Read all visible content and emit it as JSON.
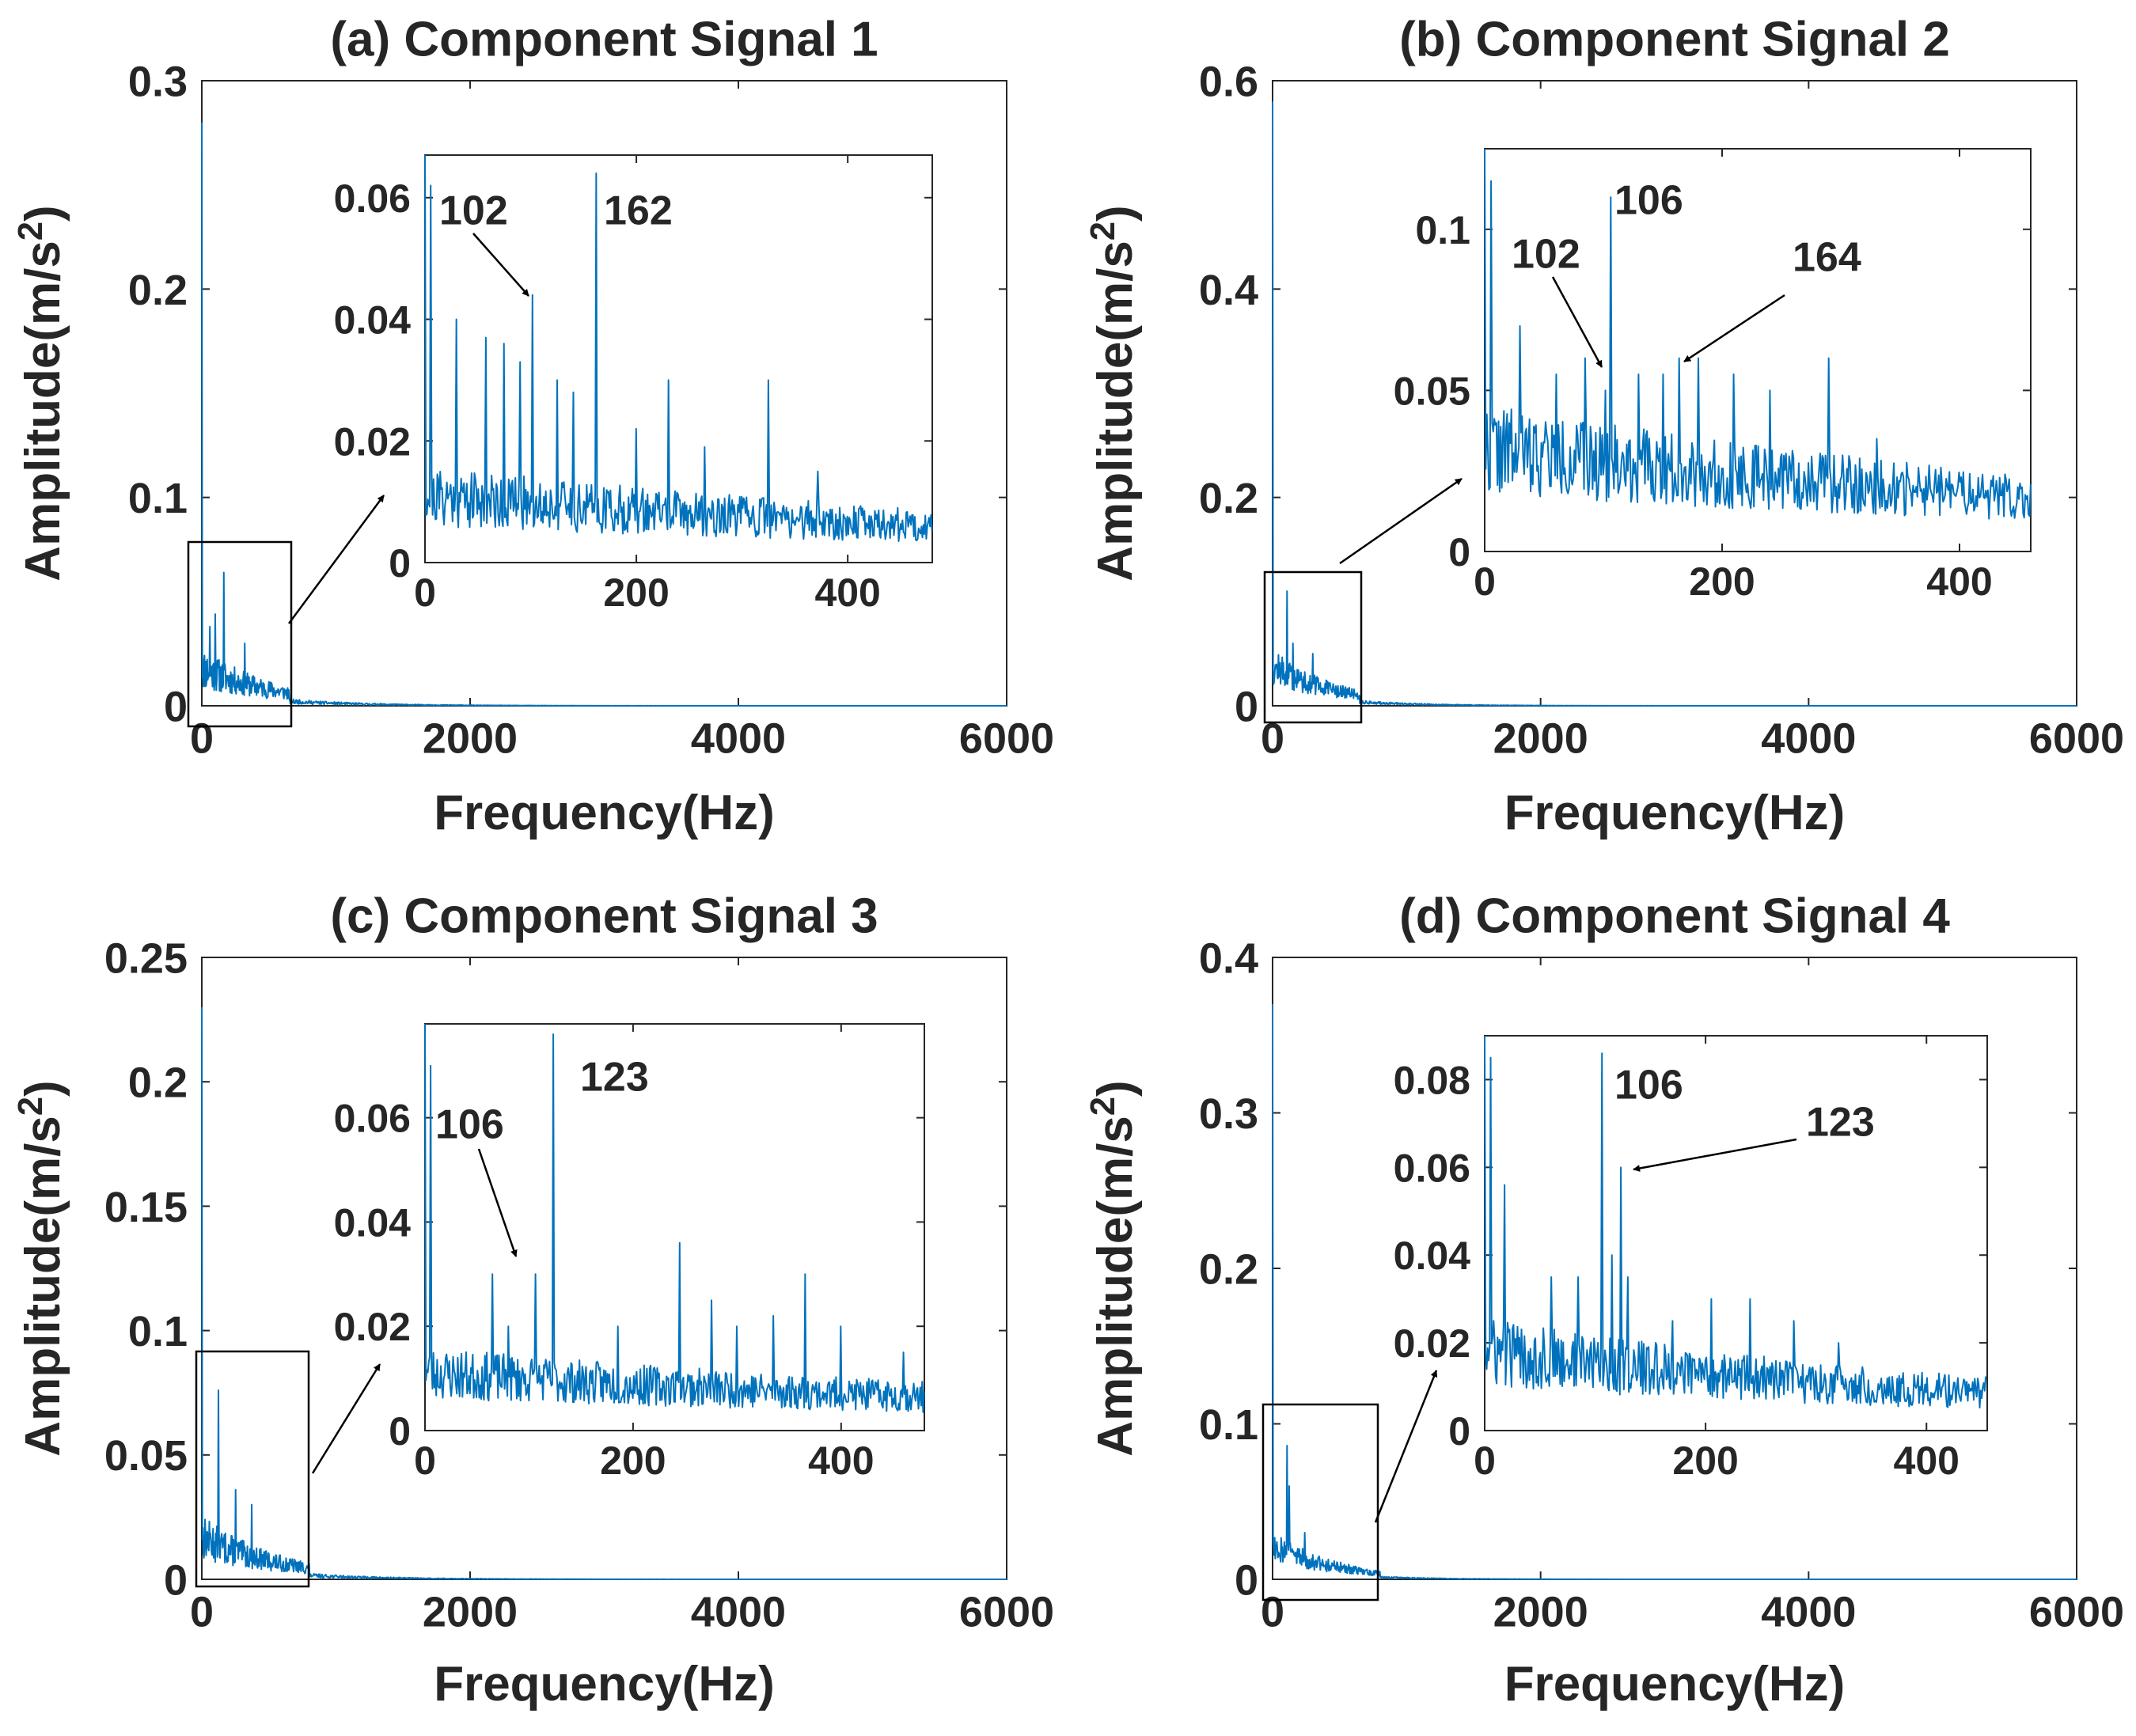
{
  "colors": {
    "series": "#0072bd",
    "axis": "#262626",
    "box": "#000000",
    "background": "#ffffff"
  },
  "chart_data": [
    {
      "type": "line",
      "title": "(a) Component Signal 1",
      "xlabel": "Frequency(Hz)",
      "ylabel_base": "Amplitude(m/s",
      "ylabel_sup": "2",
      "ylabel_close": ")",
      "xlim": [
        0,
        6000
      ],
      "ylim": [
        0,
        0.3
      ],
      "xticks": [
        0,
        2000,
        4000,
        6000
      ],
      "xtick_labels": [
        "0",
        "2000",
        "4000",
        "6000"
      ],
      "yticks": [
        0,
        0.1,
        0.2,
        0.3
      ],
      "ytick_labels": [
        "0",
        "0.1",
        "0.2",
        "0.3"
      ],
      "spectrum": {
        "peaks": [
          [
            0,
            0.28
          ],
          [
            60,
            0.038
          ],
          [
            100,
            0.044
          ],
          [
            162,
            0.064
          ],
          [
            320,
            0.03
          ]
        ],
        "noise_base": 0.008,
        "noise_amp": 0.02,
        "decay_hz": 600,
        "zoom_end_hz": 650,
        "seed": 11
      },
      "zoom_region": {
        "x": [
          -100,
          650
        ],
        "y": [
          0,
          0.08
        ]
      },
      "inset": {
        "xlim": [
          0,
          480
        ],
        "ylim": [
          0,
          0.067
        ],
        "xticks": [
          0,
          200,
          400
        ],
        "xtick_labels": [
          "0",
          "200",
          "400"
        ],
        "yticks": [
          0,
          0.02,
          0.04,
          0.06
        ],
        "ytick_labels": [
          "0",
          "0.02",
          "0.04",
          "0.06"
        ],
        "peaks": [
          [
            0,
            0.067
          ],
          [
            5,
            0.062
          ],
          [
            30,
            0.04
          ],
          [
            58,
            0.037
          ],
          [
            75,
            0.036
          ],
          [
            90,
            0.033
          ],
          [
            102,
            0.044
          ],
          [
            125,
            0.03
          ],
          [
            140,
            0.028
          ],
          [
            162,
            0.064
          ],
          [
            200,
            0.022
          ],
          [
            230,
            0.03
          ],
          [
            265,
            0.019
          ],
          [
            325,
            0.03
          ],
          [
            372,
            0.015
          ]
        ],
        "noise_base": 0.006,
        "noise_amp": 0.01,
        "decay_hz": 800,
        "seed": 21,
        "annotations": [
          {
            "label": "102",
            "x": 102,
            "y": 0.044,
            "arrow": true
          },
          {
            "label": "162",
            "x": 162,
            "y": 0.064,
            "arrow": false
          }
        ]
      }
    },
    {
      "type": "line",
      "title": "(b) Component Signal 2",
      "xlabel": "Frequency(Hz)",
      "ylabel_base": "Amplitude(m/s",
      "ylabel_sup": "2",
      "ylabel_close": ")",
      "xlim": [
        0,
        6000
      ],
      "ylim": [
        0,
        0.6
      ],
      "xticks": [
        0,
        2000,
        4000,
        6000
      ],
      "xtick_labels": [
        "0",
        "2000",
        "4000",
        "6000"
      ],
      "yticks": [
        0,
        0.2,
        0.4,
        0.6
      ],
      "ytick_labels": [
        "0",
        "0.2",
        "0.4",
        "0.6"
      ],
      "spectrum": {
        "peaks": [
          [
            0,
            0.58
          ],
          [
            106,
            0.11
          ],
          [
            150,
            0.06
          ],
          [
            300,
            0.05
          ]
        ],
        "noise_base": 0.02,
        "noise_amp": 0.035,
        "decay_hz": 500,
        "zoom_end_hz": 650,
        "seed": 12
      },
      "zoom_region": {
        "x": [
          -50,
          650
        ],
        "y": [
          0,
          0.13
        ]
      },
      "inset": {
        "xlim": [
          0,
          460
        ],
        "ylim": [
          0,
          0.125
        ],
        "xticks": [
          0,
          200,
          400
        ],
        "xtick_labels": [
          "0",
          "200",
          "400"
        ],
        "yticks": [
          0,
          0.05,
          0.1
        ],
        "ytick_labels": [
          "0",
          "0.05",
          "0.1"
        ],
        "peaks": [
          [
            0,
            0.125
          ],
          [
            5,
            0.115
          ],
          [
            30,
            0.07
          ],
          [
            60,
            0.055
          ],
          [
            85,
            0.06
          ],
          [
            102,
            0.05
          ],
          [
            106,
            0.11
          ],
          [
            130,
            0.055
          ],
          [
            150,
            0.055
          ],
          [
            164,
            0.06
          ],
          [
            180,
            0.06
          ],
          [
            210,
            0.055
          ],
          [
            240,
            0.05
          ],
          [
            290,
            0.06
          ],
          [
            330,
            0.035
          ]
        ],
        "noise_base": 0.018,
        "noise_amp": 0.028,
        "decay_hz": 700,
        "seed": 22,
        "annotations": [
          {
            "label": "102",
            "x": 102,
            "y": 0.05,
            "arrow": true
          },
          {
            "label": "106",
            "x": 106,
            "y": 0.11,
            "arrow": false
          },
          {
            "label": "164",
            "x": 164,
            "y": 0.06,
            "arrow": true
          }
        ]
      }
    },
    {
      "type": "line",
      "title": "(c) Component Signal 3",
      "xlabel": "Frequency(Hz)",
      "ylabel_base": "Amplitude(m/s",
      "ylabel_sup": "2",
      "ylabel_close": ")",
      "xlim": [
        0,
        6000
      ],
      "ylim": [
        0,
        0.25
      ],
      "xticks": [
        0,
        2000,
        4000,
        6000
      ],
      "xtick_labels": [
        "0",
        "2000",
        "4000",
        "6000"
      ],
      "yticks": [
        0,
        0.05,
        0.1,
        0.15,
        0.2,
        0.25
      ],
      "ytick_labels": [
        "0",
        "0.05",
        "0.1",
        "0.15",
        "0.2",
        "0.25"
      ],
      "spectrum": {
        "peaks": [
          [
            0,
            0.23
          ],
          [
            123,
            0.076
          ],
          [
            250,
            0.036
          ],
          [
            370,
            0.03
          ]
        ],
        "noise_base": 0.008,
        "noise_amp": 0.018,
        "decay_hz": 600,
        "zoom_end_hz": 800,
        "seed": 13
      },
      "zoom_region": {
        "x": [
          -50,
          800
        ],
        "y": [
          0,
          0.09
        ]
      },
      "inset": {
        "xlim": [
          0,
          480
        ],
        "ylim": [
          0,
          0.078
        ],
        "xticks": [
          0,
          200,
          400
        ],
        "xtick_labels": [
          "0",
          "200",
          "400"
        ],
        "yticks": [
          0,
          0.02,
          0.04,
          0.06
        ],
        "ytick_labels": [
          "0",
          "0.02",
          "0.04",
          "0.06"
        ],
        "peaks": [
          [
            0,
            0.078
          ],
          [
            5,
            0.07
          ],
          [
            65,
            0.03
          ],
          [
            80,
            0.02
          ],
          [
            106,
            0.03
          ],
          [
            123,
            0.076
          ],
          [
            185,
            0.02
          ],
          [
            245,
            0.036
          ],
          [
            275,
            0.025
          ],
          [
            300,
            0.02
          ],
          [
            335,
            0.022
          ],
          [
            365,
            0.03
          ],
          [
            400,
            0.02
          ],
          [
            460,
            0.015
          ]
        ],
        "noise_base": 0.006,
        "noise_amp": 0.01,
        "decay_hz": 900,
        "seed": 23,
        "annotations": [
          {
            "label": "106",
            "x": 106,
            "y": 0.03,
            "arrow": true
          },
          {
            "label": "123",
            "x": 123,
            "y": 0.076,
            "arrow": false
          }
        ]
      }
    },
    {
      "type": "line",
      "title": "(d) Component Signal 4",
      "xlabel": "Frequency(Hz)",
      "ylabel_base": "Amplitude(m/s",
      "ylabel_sup": "2",
      "ylabel_close": ")",
      "xlim": [
        0,
        6000
      ],
      "ylim": [
        0,
        0.4
      ],
      "xticks": [
        0,
        2000,
        4000,
        6000
      ],
      "xtick_labels": [
        "0",
        "2000",
        "4000",
        "6000"
      ],
      "yticks": [
        0,
        0.1,
        0.2,
        0.3,
        0.4
      ],
      "ytick_labels": [
        "0",
        "0.1",
        "0.2",
        "0.3",
        "0.4"
      ],
      "spectrum": {
        "peaks": [
          [
            0,
            0.37
          ],
          [
            106,
            0.086
          ],
          [
            123,
            0.06
          ],
          [
            240,
            0.03
          ]
        ],
        "noise_base": 0.012,
        "noise_amp": 0.022,
        "decay_hz": 450,
        "zoom_end_hz": 800,
        "seed": 14
      },
      "zoom_region": {
        "x": [
          -50,
          800
        ],
        "y": [
          -0.015,
          0.11
        ]
      },
      "inset": {
        "xlim": [
          0,
          455
        ],
        "ylim": [
          0,
          0.09
        ],
        "xticks": [
          0,
          200,
          400
        ],
        "xtick_labels": [
          "0",
          "200",
          "400"
        ],
        "yticks": [
          0,
          0.02,
          0.04,
          0.06,
          0.08
        ],
        "ytick_labels": [
          "0",
          "0.02",
          "0.04",
          "0.06",
          "0.08"
        ],
        "peaks": [
          [
            0,
            0.09
          ],
          [
            5,
            0.085
          ],
          [
            18,
            0.056
          ],
          [
            60,
            0.035
          ],
          [
            85,
            0.035
          ],
          [
            106,
            0.086
          ],
          [
            115,
            0.04
          ],
          [
            123,
            0.06
          ],
          [
            130,
            0.035
          ],
          [
            170,
            0.025
          ],
          [
            205,
            0.03
          ],
          [
            240,
            0.03
          ],
          [
            280,
            0.025
          ],
          [
            320,
            0.02
          ]
        ],
        "noise_base": 0.01,
        "noise_amp": 0.016,
        "decay_hz": 600,
        "seed": 24,
        "annotations": [
          {
            "label": "106",
            "x": 106,
            "y": 0.086,
            "arrow": false
          },
          {
            "label": "123",
            "x": 123,
            "y": 0.06,
            "arrow": true
          }
        ]
      }
    }
  ]
}
